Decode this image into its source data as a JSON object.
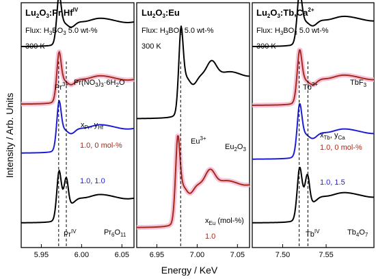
{
  "chart_data": {
    "type": "line",
    "ylabel": "Intensity / Arb. Units",
    "xlabel": "Energy / KeV",
    "panels": [
      {
        "title_main": "Lu",
        "title_sub1": "2",
        "title_mid": "O",
        "title_sub2": "3",
        "title_rest": ":Pr,Hf",
        "title_sup": "IV",
        "flux_main": "Flux: H",
        "flux_sub1": "3",
        "flux_mid": "BO",
        "flux_sub2": "3",
        "flux_rest": " 5.0 wt-%",
        "temperature": "300 K",
        "xlim": [
          5.925,
          6.065
        ],
        "xticks": [
          5.95,
          6.0,
          6.05
        ],
        "xtick_labels": [
          "5.95",
          "6.00",
          "6.05"
        ],
        "edges": [
          5.9715,
          5.981
        ],
        "series": [
          {
            "color": "#000000",
            "highlight": false,
            "offset": 0.82,
            "scale": 0.15,
            "edge": 5.9715,
            "second": false
          },
          {
            "color": "#a52a1a",
            "highlight": true,
            "offset": 0.585,
            "scale": 0.15,
            "edge": 5.9715,
            "second": false
          },
          {
            "color": "#1c1cd6",
            "highlight": false,
            "offset": 0.385,
            "scale": 0.15,
            "edge": 5.9715,
            "second": false
          },
          {
            "color": "#000000",
            "highlight": false,
            "offset": 0.1,
            "scale": 0.15,
            "edge": 5.9715,
            "second": true
          }
        ],
        "labels": {
          "ref_top": {
            "main": "Pr(NO",
            "s1": "3",
            "mid": ")",
            "s2": "3",
            "rest": "·6H",
            "s3": "2",
            "end": "O"
          },
          "ion3": {
            "main": "Pr",
            "sup": "3+"
          },
          "conc_var": {
            "a": "x",
            "as": "Pr",
            "b": ", y",
            "bs": "Hf"
          },
          "conc_1": "1.0, 0 mol-%",
          "conc_2": "1.0, 1.0",
          "ion4": {
            "main": "Pr",
            "sup": "IV"
          },
          "ref_bottom": {
            "main": "Pr",
            "s1": "6",
            "mid": "O",
            "s2": "11"
          }
        }
      },
      {
        "title_main": "Lu",
        "title_sub1": "2",
        "title_mid": "O",
        "title_sub2": "3",
        "title_rest": ":Eu",
        "flux_main": "Flux: H",
        "flux_sub1": "3",
        "flux_mid": "BO",
        "flux_sub2": "3",
        "flux_rest": " 5.0 wt-%",
        "temperature": "300 K",
        "xlim": [
          6.925,
          7.065
        ],
        "xticks": [
          6.95,
          7.0,
          7.05
        ],
        "xtick_labels": [
          "6.95",
          "7.00",
          "7.05"
        ],
        "edges": [
          6.9795
        ],
        "series": [
          {
            "color": "#000000",
            "highlight": false,
            "offset": 0.525,
            "scale": 0.265,
            "edge": 6.9795,
            "second": false,
            "bump": 7.018
          },
          {
            "color": "#a52a1a",
            "highlight": true,
            "offset": 0.08,
            "scale": 0.265,
            "edge": 6.9755,
            "second": false,
            "bump": 7.016
          }
        ],
        "labels": {
          "ion3": {
            "main": "Eu",
            "sup": "3+"
          },
          "ref_top": {
            "main": "Eu",
            "s1": "2",
            "mid": "O",
            "s2": "3"
          },
          "conc_var": {
            "a": "x",
            "as": "Eu",
            "b": " (mol-%)"
          },
          "conc_1": "1.0"
        }
      },
      {
        "title_main": "Lu",
        "title_sub1": "2",
        "title_mid": "O",
        "title_sub2": "3",
        "title_rest": ":Tb,Ca",
        "title_sup": "2+",
        "flux_main": "Flux: H",
        "flux_sub1": "3",
        "flux_mid": "BO",
        "flux_sub2": "3",
        "flux_rest": " 5.0 wt-%",
        "temperature": "300 K",
        "xlim": [
          7.465,
          7.605
        ],
        "xticks": [
          7.5,
          7.55
        ],
        "xtick_labels": [
          "7.50",
          "7.55"
        ],
        "edges": [
          7.519,
          7.529
        ],
        "series": [
          {
            "color": "#000000",
            "highlight": false,
            "offset": 0.82,
            "scale": 0.16,
            "edge": 7.519,
            "second": false
          },
          {
            "color": "#a52a1a",
            "highlight": true,
            "offset": 0.58,
            "scale": 0.16,
            "edge": 7.519,
            "second": false
          },
          {
            "color": "#1c1cd6",
            "highlight": false,
            "offset": 0.36,
            "scale": 0.16,
            "edge": 7.519,
            "second": false
          },
          {
            "color": "#000000",
            "highlight": false,
            "offset": 0.1,
            "scale": 0.16,
            "edge": 7.519,
            "second": true
          }
        ],
        "labels": {
          "ion3": {
            "main": "Tb",
            "sup": "3+"
          },
          "ref_top": {
            "main": "TbF",
            "s1": "3"
          },
          "conc_var": {
            "a": "x",
            "as": "Tb",
            "b": ", y",
            "bs": "Ca"
          },
          "conc_1": "1.0, 0 mol-%",
          "conc_2": "1.0, 1.5",
          "ion4": {
            "main": "Tb",
            "sup": "IV"
          },
          "ref_bottom": {
            "main": "Tb",
            "s1": "4",
            "mid": "O",
            "s2": "7"
          }
        }
      }
    ]
  }
}
